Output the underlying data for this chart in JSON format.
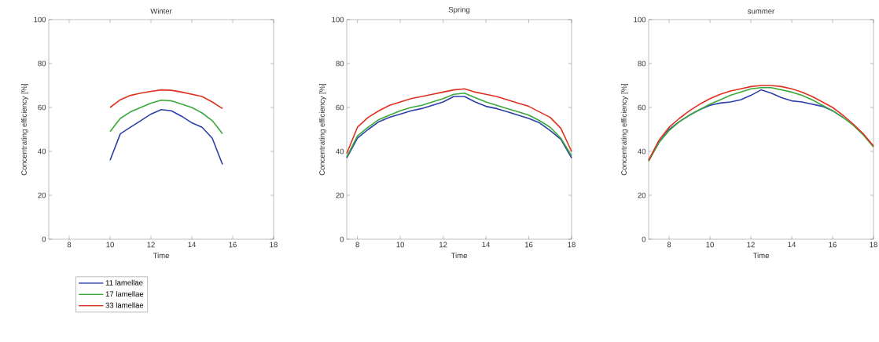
{
  "chart_data": [
    {
      "type": "line",
      "title": "Winter",
      "xlabel": "Time",
      "ylabel": "Concentrating efficiency [%]",
      "xlim": [
        7,
        18
      ],
      "ylim": [
        0,
        100
      ],
      "xticks": [
        8,
        10,
        12,
        14,
        16,
        18
      ],
      "yticks": [
        0,
        20,
        40,
        60,
        80,
        100
      ],
      "grid": false,
      "legend": "bottom",
      "marker": "none",
      "line_style": "solid",
      "x": [
        10,
        10.5,
        11,
        11.5,
        12,
        12.5,
        13,
        13.5,
        14,
        14.5,
        15,
        15.5
      ],
      "series": [
        {
          "name": "11 lamellae",
          "color": "#2b3fa8",
          "values": [
            36,
            48,
            51,
            54,
            57,
            59,
            58.5,
            56,
            53,
            51,
            46,
            34
          ]
        },
        {
          "name": "17 lamellae",
          "color": "#3aa83a",
          "values": [
            49,
            55,
            58,
            60,
            62,
            63.3,
            63,
            61.5,
            60,
            57.5,
            54,
            48
          ]
        },
        {
          "name": "33 lamellae",
          "color": "#e03020",
          "values": [
            60,
            63.5,
            65.5,
            66.5,
            67.3,
            68,
            67.8,
            67,
            66,
            65,
            62.5,
            59.5
          ]
        }
      ]
    },
    {
      "type": "line",
      "title": "Spring",
      "xlabel": "Time",
      "ylabel": "Concentrating efficiency [%]",
      "xlim": [
        7.5,
        18
      ],
      "ylim": [
        0,
        100
      ],
      "xticks": [
        8,
        10,
        12,
        14,
        16,
        18
      ],
      "yticks": [
        0,
        20,
        40,
        60,
        80,
        100
      ],
      "grid": false,
      "marker": "none",
      "line_style": "solid",
      "x": [
        7.5,
        8,
        8.5,
        9,
        9.5,
        10,
        10.5,
        11,
        11.5,
        12,
        12.5,
        13,
        13.5,
        14,
        14.5,
        15,
        15.5,
        16,
        16.5,
        17,
        17.5,
        18
      ],
      "series": [
        {
          "color": "#2b3fa8",
          "values": [
            37,
            46,
            50,
            53.5,
            55.5,
            57,
            58.5,
            59.5,
            61,
            62.5,
            65,
            65,
            62.5,
            60.5,
            59.5,
            58,
            56.5,
            55,
            53,
            49.5,
            45.5,
            37
          ]
        },
        {
          "color": "#3aa83a",
          "values": [
            37.5,
            47,
            51,
            54.5,
            56.5,
            58.5,
            60,
            61,
            62.5,
            64,
            66,
            66.5,
            64.5,
            62.5,
            61,
            59.5,
            58,
            56.5,
            54,
            51,
            46,
            38
          ]
        },
        {
          "color": "#e03020",
          "values": [
            39,
            51,
            55.5,
            58.5,
            61,
            62.5,
            64,
            65,
            66,
            67,
            68,
            68.5,
            67,
            66,
            65,
            63.5,
            62,
            60.5,
            58,
            55.5,
            50.5,
            40
          ]
        }
      ]
    },
    {
      "type": "line",
      "title": "summer",
      "xlabel": "Time",
      "ylabel": "Concentrating efficiency [%]",
      "xlim": [
        7,
        18
      ],
      "ylim": [
        0,
        100
      ],
      "xticks": [
        8,
        10,
        12,
        14,
        16,
        18
      ],
      "yticks": [
        0,
        20,
        40,
        60,
        80,
        100
      ],
      "grid": false,
      "marker": "none",
      "line_style": "solid",
      "x": [
        7,
        7.5,
        8,
        8.5,
        9,
        9.5,
        10,
        10.5,
        11,
        11.5,
        12,
        12.5,
        13,
        13.5,
        14,
        14.5,
        15,
        15.5,
        16,
        16.5,
        17,
        17.5,
        18
      ],
      "series": [
        {
          "color": "#2b3fa8",
          "values": [
            36,
            44,
            50,
            53.5,
            56.5,
            59,
            61,
            62,
            62.5,
            63.5,
            65.5,
            68,
            66.5,
            64.5,
            63,
            62.5,
            61.5,
            60.5,
            58.5,
            55.5,
            null,
            null,
            null
          ]
        },
        {
          "color": "#3aa83a",
          "values": [
            35.5,
            44,
            49.5,
            53.5,
            56.5,
            59,
            61.5,
            63.5,
            65.5,
            67,
            68.5,
            69,
            69,
            68,
            67,
            65.5,
            63.5,
            61,
            58.5,
            55.5,
            52,
            47.5,
            42
          ]
        },
        {
          "color": "#e03020",
          "values": [
            36,
            45,
            51,
            55,
            58.5,
            61.5,
            64,
            66,
            67.5,
            68.5,
            69.5,
            70,
            70,
            69.5,
            68.5,
            67,
            65,
            62.5,
            60,
            56.5,
            52.5,
            48,
            42.5
          ]
        }
      ]
    }
  ]
}
